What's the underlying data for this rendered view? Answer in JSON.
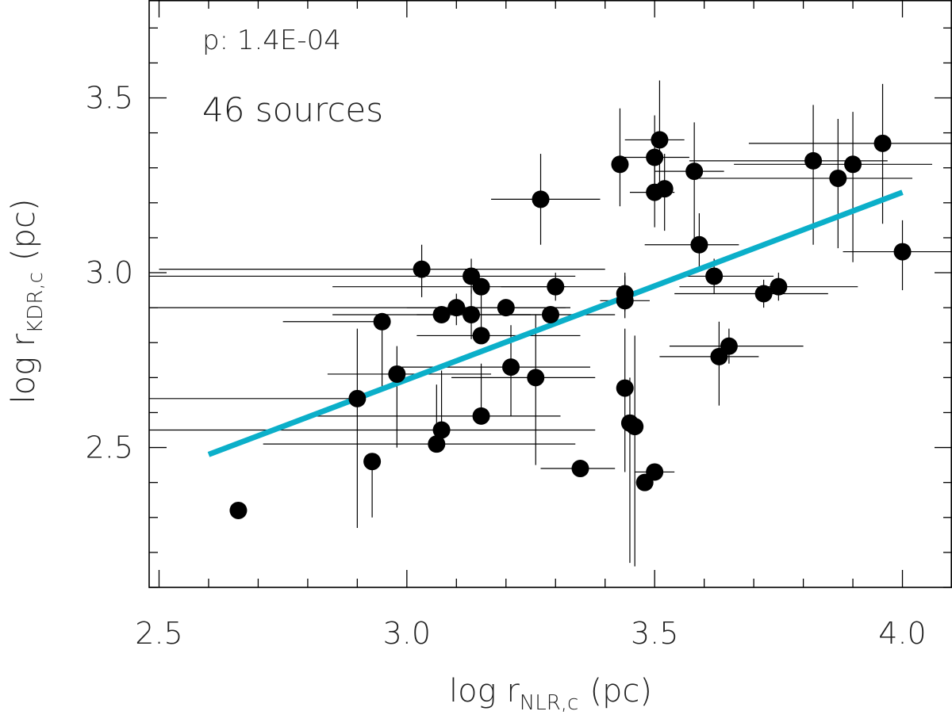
{
  "chart_data": {
    "type": "scatter",
    "xlabel": "log r",
    "xlabel_sub": "NLR,c",
    "xlabel_unit": "(pc)",
    "ylabel": "log r",
    "ylabel_sub": "KDR,c",
    "ylabel_unit": "(pc)",
    "xlim": [
      2.48,
      4.1
    ],
    "ylim": [
      2.1,
      3.78
    ],
    "x_ticks_major": [
      2.5,
      3.0,
      3.5,
      4.0
    ],
    "x_tick_labels": [
      "2.5",
      "3.0",
      "3.5",
      "4.0"
    ],
    "x_tick_minor_step": 0.1,
    "y_ticks_major": [
      2.5,
      3.0,
      3.5
    ],
    "y_tick_labels": [
      "2.5",
      "3.0",
      "3.5"
    ],
    "y_tick_minor_step": 0.1,
    "grid": false,
    "annotations": {
      "p_value": "p: 1.4E-04",
      "n_sources": "46 sources"
    },
    "fit_line": {
      "x": [
        2.6,
        4.0
      ],
      "y": [
        2.48,
        3.23
      ],
      "color": "#0bafc9"
    },
    "point_color": "#000000",
    "points": [
      {
        "x": 2.66,
        "y": 2.32
      },
      {
        "x": 2.9,
        "y": 2.64,
        "xerr": [
          0.66,
          0.0
        ],
        "yerr": [
          0.37,
          0.2
        ]
      },
      {
        "x": 2.93,
        "y": 2.46,
        "yerr": [
          0.16,
          0.0
        ]
      },
      {
        "x": 2.95,
        "y": 2.86,
        "xerr": [
          0.2,
          0.0
        ],
        "yerr": [
          0.2,
          0.0
        ]
      },
      {
        "x": 2.98,
        "y": 2.71,
        "xerr": [
          0.14,
          0.19
        ],
        "yerr": [
          0.21,
          0.08
        ]
      },
      {
        "x": 3.03,
        "y": 3.01,
        "xerr": [
          0.53,
          0.37
        ],
        "yerr": [
          0.08,
          0.07
        ]
      },
      {
        "x": 3.06,
        "y": 2.51,
        "xerr": [
          0.35,
          0.28
        ],
        "yerr": [
          0.0,
          0.17
        ]
      },
      {
        "x": 3.07,
        "y": 2.55,
        "xerr": [
          0.59,
          0.31
        ],
        "yerr": [
          0.0,
          0.17
        ]
      },
      {
        "x": 3.07,
        "y": 2.88,
        "xerr": [
          0.22,
          0.2
        ]
      },
      {
        "x": 3.1,
        "y": 2.9,
        "xerr": [
          0.62,
          0.22
        ],
        "yerr": [
          0.05,
          0.04
        ]
      },
      {
        "x": 3.13,
        "y": 2.99,
        "xerr": [
          0.66,
          0.21
        ],
        "yerr": [
          0.05,
          0.05
        ]
      },
      {
        "x": 3.13,
        "y": 2.88,
        "xerr": [
          0.11,
          0.12
        ],
        "yerr": [
          0.07,
          0.07
        ]
      },
      {
        "x": 3.15,
        "y": 2.96,
        "xerr": [
          0.3,
          0.17
        ]
      },
      {
        "x": 3.15,
        "y": 2.82,
        "xerr": [
          0.13,
          0.2
        ],
        "yerr": [
          0.0,
          0.12
        ]
      },
      {
        "x": 3.15,
        "y": 2.59,
        "xerr": [
          0.34,
          0.16
        ],
        "yerr": [
          0.0,
          0.15
        ]
      },
      {
        "x": 3.2,
        "y": 2.9,
        "xerr": [
          0.2,
          0.13
        ]
      },
      {
        "x": 3.21,
        "y": 2.73,
        "xerr": [
          0.22,
          0.16
        ],
        "yerr": [
          0.14,
          0.12
        ]
      },
      {
        "x": 3.26,
        "y": 2.7,
        "xerr": [
          0.17,
          0.12
        ],
        "yerr": [
          0.25,
          0.18
        ]
      },
      {
        "x": 3.27,
        "y": 3.21,
        "xerr": [
          0.1,
          0.12
        ],
        "yerr": [
          0.13,
          0.13
        ]
      },
      {
        "x": 3.29,
        "y": 2.88,
        "xerr": [
          0.09,
          0.13
        ]
      },
      {
        "x": 3.3,
        "y": 2.96,
        "xerr": [
          0.11,
          0.13
        ],
        "yerr": [
          0.04,
          0.04
        ]
      },
      {
        "x": 3.35,
        "y": 2.44,
        "xerr": [
          0.08,
          0.07
        ]
      },
      {
        "x": 3.43,
        "y": 3.31,
        "yerr": [
          0.12,
          0.16
        ]
      },
      {
        "x": 3.44,
        "y": 2.92,
        "xerr": [
          0.05,
          0.05
        ],
        "yerr": [
          0.05,
          0.08
        ]
      },
      {
        "x": 3.44,
        "y": 2.94,
        "yerr": [
          0.05,
          0.05
        ]
      },
      {
        "x": 3.44,
        "y": 2.67,
        "yerr": [
          0.24,
          0.17
        ]
      },
      {
        "x": 3.45,
        "y": 2.57,
        "yerr": [
          0.4,
          0.13
        ]
      },
      {
        "x": 3.46,
        "y": 2.56,
        "yerr": [
          0.4,
          0.26
        ]
      },
      {
        "x": 3.48,
        "y": 2.4
      },
      {
        "x": 3.5,
        "y": 3.33,
        "xerr": [
          0.07,
          0.07
        ],
        "yerr": [
          0.12,
          0.12
        ]
      },
      {
        "x": 3.5,
        "y": 3.23,
        "xerr": [
          0.05,
          0.04
        ],
        "yerr": [
          0.1,
          0.1
        ]
      },
      {
        "x": 3.5,
        "y": 2.43,
        "xerr": [
          0.04,
          0.04
        ]
      },
      {
        "x": 3.51,
        "y": 3.38,
        "xerr": [
          0.07,
          0.05
        ],
        "yerr": [
          0.13,
          0.17
        ]
      },
      {
        "x": 3.52,
        "y": 3.24,
        "yerr": [
          0.12,
          0.1
        ]
      },
      {
        "x": 3.58,
        "y": 3.29,
        "xerr": [
          0.08,
          0.06
        ],
        "yerr": [
          0.2,
          0.14
        ]
      },
      {
        "x": 3.59,
        "y": 3.08,
        "xerr": [
          0.11,
          0.08
        ],
        "yerr": [
          0.07,
          0.09
        ]
      },
      {
        "x": 3.62,
        "y": 2.99,
        "xerr": [
          0.07,
          0.12
        ],
        "yerr": [
          0.05,
          0.05
        ]
      },
      {
        "x": 3.63,
        "y": 2.76,
        "xerr": [
          0.12,
          0.08
        ],
        "yerr": [
          0.14,
          0.1
        ]
      },
      {
        "x": 3.65,
        "y": 2.79,
        "xerr": [
          0.12,
          0.15
        ],
        "yerr": [
          0.05,
          0.05
        ]
      },
      {
        "x": 3.72,
        "y": 2.94,
        "xerr": [
          0.18,
          0.13
        ],
        "yerr": [
          0.04,
          0.04
        ]
      },
      {
        "x": 3.75,
        "y": 2.96,
        "xerr": [
          0.2,
          0.16
        ],
        "yerr": [
          0.04,
          0.04
        ]
      },
      {
        "x": 3.82,
        "y": 3.32,
        "xerr": [
          0.25,
          0.15
        ],
        "yerr": [
          0.24,
          0.16
        ]
      },
      {
        "x": 3.87,
        "y": 3.27,
        "xerr": [
          0.28,
          0.15
        ],
        "yerr": [
          0.2,
          0.17
        ]
      },
      {
        "x": 3.9,
        "y": 3.31,
        "xerr": [
          0.24,
          0.16
        ],
        "yerr": [
          0.28,
          0.15
        ]
      },
      {
        "x": 3.96,
        "y": 3.37,
        "xerr": [
          0.27,
          0.18
        ],
        "yerr": [
          0.23,
          0.17
        ]
      },
      {
        "x": 4.0,
        "y": 3.06,
        "xerr": [
          0.12,
          0.16
        ],
        "yerr": [
          0.11,
          0.09
        ]
      }
    ]
  }
}
